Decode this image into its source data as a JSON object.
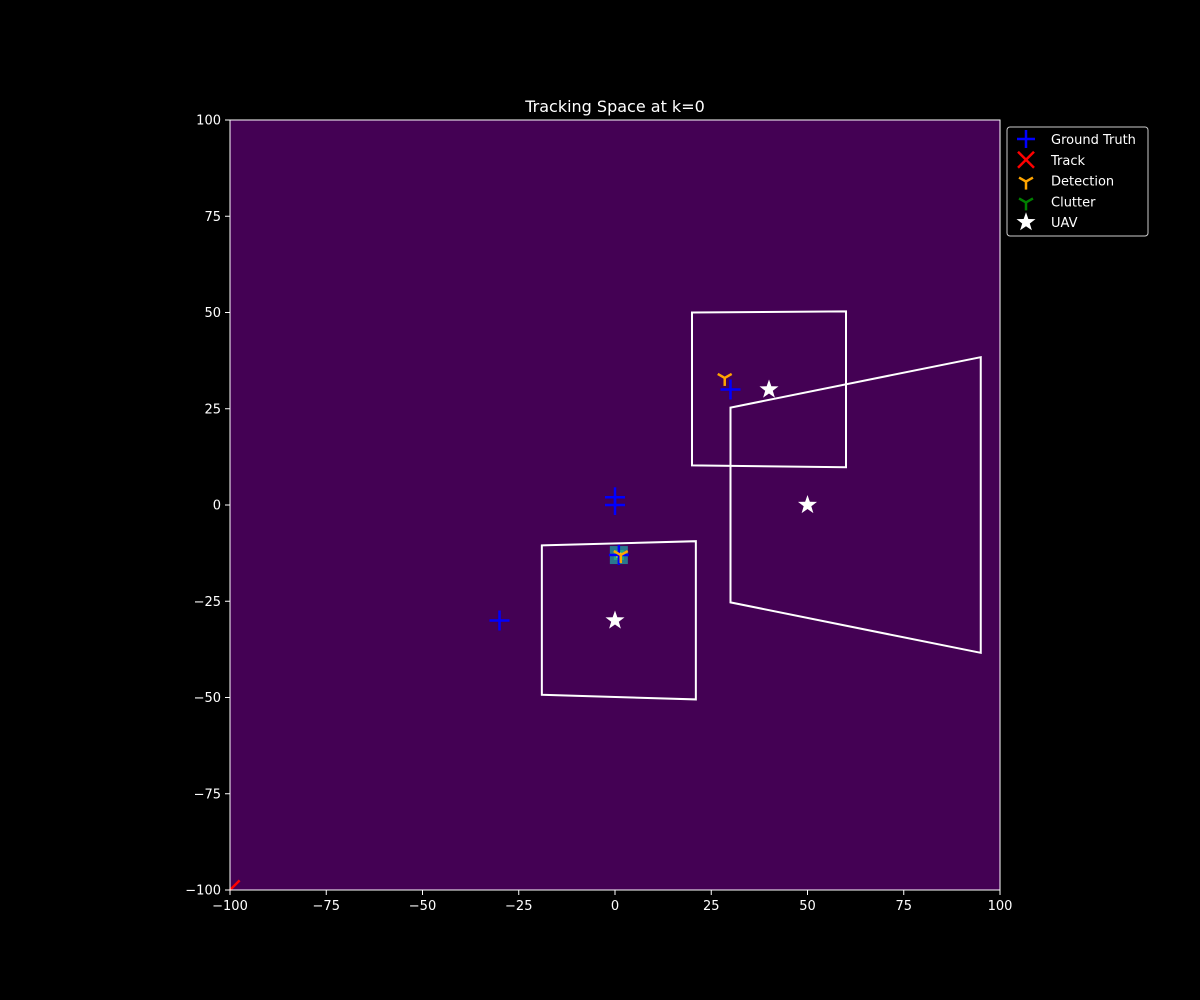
{
  "chart_data": {
    "type": "scatter",
    "title": "Tracking Space at k=0",
    "xlabel": "",
    "ylabel": "",
    "xlim": [
      -100,
      100
    ],
    "ylim": [
      -100,
      100
    ],
    "xticks": [
      -100,
      -75,
      -50,
      -25,
      0,
      25,
      50,
      75,
      100
    ],
    "yticks": [
      -100,
      -75,
      -50,
      -25,
      0,
      25,
      50,
      75,
      100
    ],
    "xtick_labels": [
      "−100",
      "−75",
      "−50",
      "−25",
      "0",
      "25",
      "50",
      "75",
      "100"
    ],
    "ytick_labels": [
      "−100",
      "−75",
      "−50",
      "−25",
      "0",
      "25",
      "50",
      "75",
      "100"
    ],
    "grid": false,
    "legend_position": "outside-top-right",
    "colors": {
      "background": "#000000",
      "plot_area": "#440154",
      "ground_truth": "#0000ff",
      "track": "#ff0000",
      "detection": "#ffa500",
      "clutter": "#008000",
      "uav": "#ffffff",
      "fov": "#ffffff"
    },
    "legend": [
      {
        "name": "Ground Truth",
        "marker": "plus",
        "color": "#0000ff"
      },
      {
        "name": "Track",
        "marker": "x",
        "color": "#ff0000"
      },
      {
        "name": "Detection",
        "marker": "tri-down",
        "color": "#ffa500"
      },
      {
        "name": "Clutter",
        "marker": "tri-down",
        "color": "#008000"
      },
      {
        "name": "UAV",
        "marker": "star",
        "color": "#ffffff"
      }
    ],
    "series": [
      {
        "name": "Ground Truth",
        "points": [
          [
            30,
            30
          ],
          [
            0,
            2
          ],
          [
            0,
            0
          ],
          [
            -30,
            -30
          ],
          [
            1,
            -13
          ]
        ]
      },
      {
        "name": "Detection",
        "points": [
          [
            28.5,
            33
          ],
          [
            1.5,
            -13
          ]
        ]
      },
      {
        "name": "UAV",
        "points": [
          [
            40,
            30
          ],
          [
            50,
            0
          ],
          [
            0,
            -30
          ]
        ]
      }
    ],
    "fov_regions": [
      [
        [
          20,
          50
        ],
        [
          60,
          50.3
        ],
        [
          60,
          9.8
        ],
        [
          20,
          10.3
        ]
      ],
      [
        [
          30,
          25.3
        ],
        [
          95,
          38.4
        ],
        [
          95,
          -38.4
        ],
        [
          30,
          -25.3
        ]
      ],
      [
        [
          -19,
          -10.5
        ],
        [
          21,
          -9.4
        ],
        [
          21,
          -50.5
        ],
        [
          -19,
          -49.3
        ]
      ]
    ],
    "density_hotspot": {
      "x": 1,
      "y": -13
    },
    "track_segment": [
      [
        -100,
        -100
      ],
      [
        -97.5,
        -97.5
      ]
    ]
  }
}
